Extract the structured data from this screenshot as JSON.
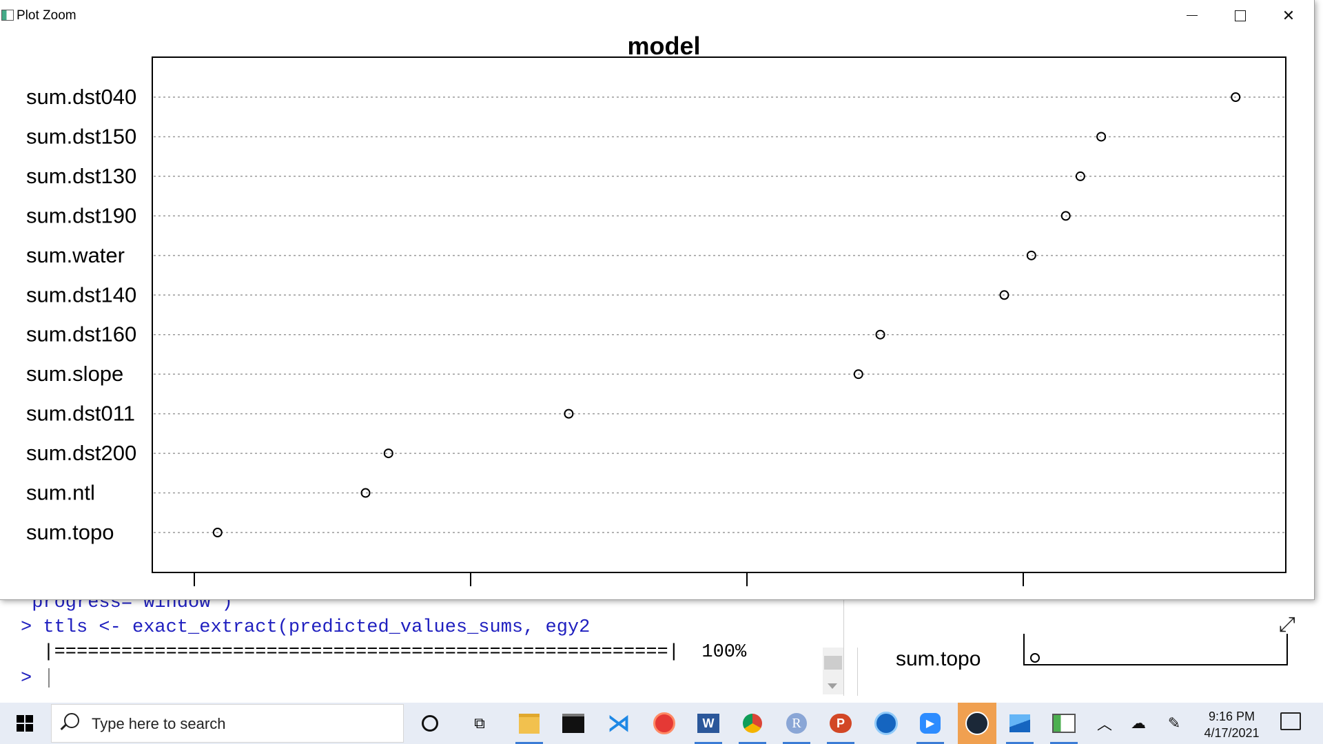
{
  "window": {
    "title": "Plot Zoom",
    "buttons": {
      "minimize": "minimize",
      "maximize": "maximize",
      "close": "close"
    }
  },
  "chart_data": {
    "type": "scatter",
    "title": "model",
    "categories": [
      "sum.dst040",
      "sum.dst150",
      "sum.dst130",
      "sum.dst190",
      "sum.water",
      "sum.dst140",
      "sum.dst160",
      "sum.slope",
      "sum.dst011",
      "sum.dst200",
      "sum.ntl",
      "sum.topo"
    ],
    "values": [
      1.0,
      0.871,
      0.851,
      0.837,
      0.804,
      0.778,
      0.659,
      0.638,
      0.36,
      0.187,
      0.165,
      0.023
    ],
    "xlim": [
      0,
      1.025
    ],
    "x_ticks_count": 4,
    "grid": true,
    "grid_style": "dotted",
    "marker": "open-circle",
    "xlabel": "",
    "ylabel": ""
  },
  "console": {
    "line1": " progress='window')",
    "line2": "> ttls <- exact_extract(predicted_values_sums, egy2",
    "line3": "  |=======================================================|  100%",
    "line4": "> "
  },
  "bg_plot": {
    "label": "sum.topo"
  },
  "taskbar": {
    "search_placeholder": "Type here to search",
    "time": "9:16 PM",
    "date": "4/17/2021",
    "icons": [
      "cortana-icon",
      "task-view-icon",
      "file-explorer-icon",
      "terminal-icon",
      "vscode-icon",
      "app-red-icon",
      "word-icon",
      "chrome-icon",
      "r-icon",
      "powerpoint-icon",
      "app-blue-icon",
      "zoom-icon",
      "steam-icon",
      "photos-icon",
      "app-green-icon"
    ]
  },
  "colors": {
    "console_text": "#1f1fbf",
    "taskbar_bg": "#e7ecf5",
    "active_app": "#f0a050"
  }
}
